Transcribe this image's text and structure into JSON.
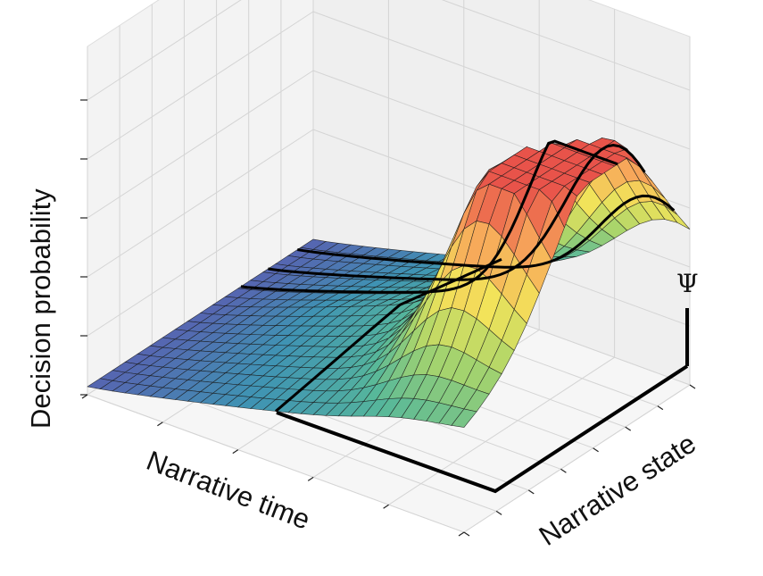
{
  "chart_data": {
    "type": "surface3d",
    "title": "",
    "xlabel": "Narrative time",
    "ylabel": "Decision probability",
    "zlabel": "Narrative state",
    "annotation": "Ψ",
    "colormap": [
      "#5b5bb0",
      "#3f93b3",
      "#57b89a",
      "#a9d56b",
      "#f2e35a",
      "#f7a85a",
      "#e8534a"
    ],
    "colorscale_range": [
      0.0,
      1.0
    ],
    "grid": true,
    "x_ticks_count": 5,
    "z_ticks_count": 7,
    "y_ticks_count": 5,
    "highlighted_state_slices": [
      0.68,
      0.8,
      0.93
    ],
    "highlighted_time_slice": 0.5,
    "mesh_resolution": [
      30,
      18
    ],
    "surface": {
      "description_terms": [
        {
          "kind": "ramp",
          "amplitude": 0.55
        },
        {
          "kind": "gaussian",
          "amplitude": 0.45,
          "t": 0.82,
          "s": 0.45,
          "sigma_t": 0.1,
          "sigma_s": 0.18
        },
        {
          "kind": "gaussian",
          "amplitude": 0.55,
          "t": 0.93,
          "s": 0.68,
          "sigma_t": 0.12,
          "sigma_s": 0.22
        }
      ]
    }
  }
}
